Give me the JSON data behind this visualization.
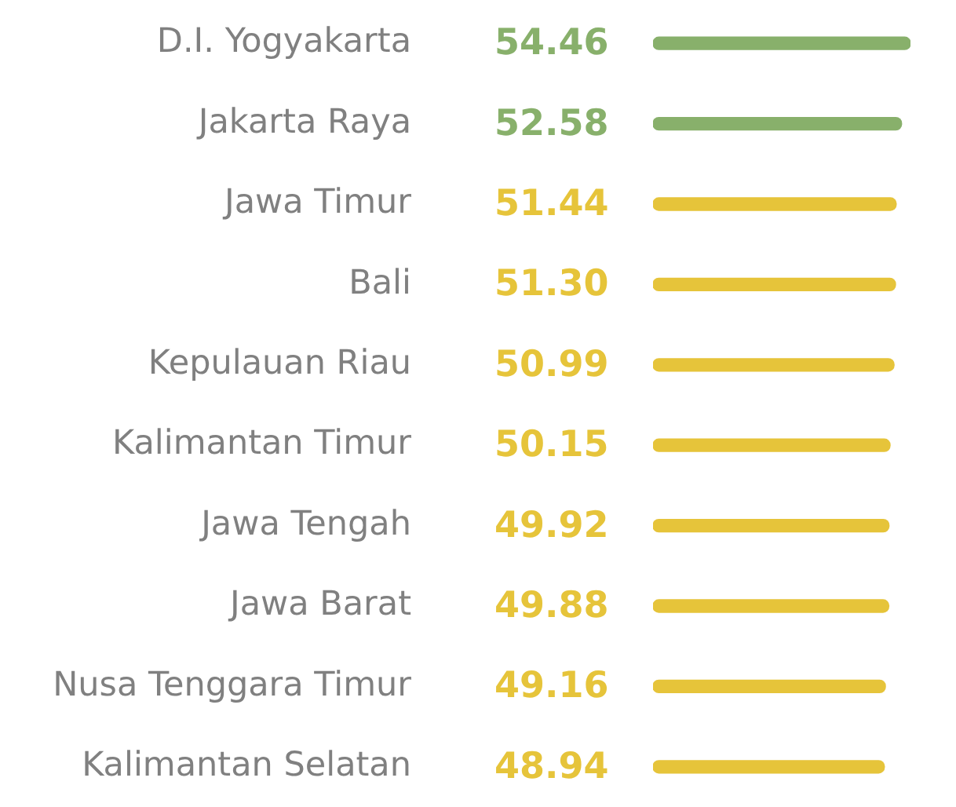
{
  "chart_data": {
    "type": "bar",
    "orientation": "horizontal",
    "categories": [
      "D.I. Yogyakarta",
      "Jakarta Raya",
      "Jawa Timur",
      "Bali",
      "Kepulauan Riau",
      "Kalimantan Timur",
      "Jawa Tengah",
      "Jawa Barat",
      "Nusa Tenggara Timur",
      "Kalimantan Selatan"
    ],
    "values": [
      54.46,
      52.58,
      51.44,
      51.3,
      50.99,
      50.15,
      49.92,
      49.88,
      49.16,
      48.94
    ],
    "value_labels": [
      "54.46",
      "52.58",
      "51.44",
      "51.30",
      "50.99",
      "50.15",
      "49.92",
      "49.88",
      "49.16",
      "48.94"
    ],
    "colors": [
      "#88b06b",
      "#88b06b",
      "#e6c43a",
      "#e6c43a",
      "#e6c43a",
      "#e6c43a",
      "#e6c43a",
      "#e6c43a",
      "#e6c43a",
      "#e6c43a"
    ],
    "grid": false,
    "tick_labels": "y"
  }
}
